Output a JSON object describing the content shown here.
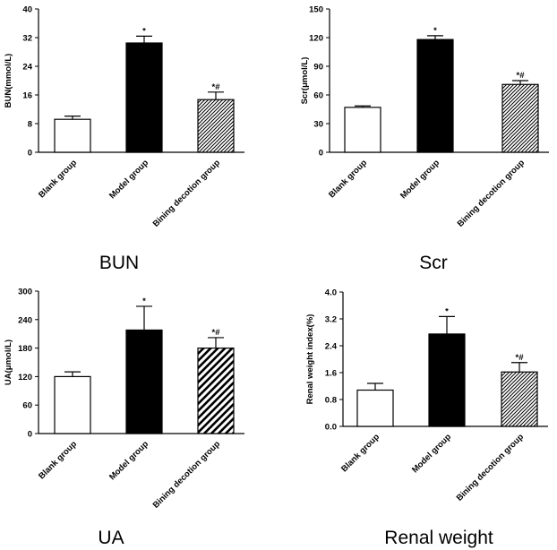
{
  "chart_data": [
    {
      "type": "bar",
      "caption": "BUN",
      "ylabel": "BUN(mmol/L)",
      "ylim": [
        0,
        40
      ],
      "yticks": [
        0,
        8,
        16,
        24,
        32,
        40
      ],
      "categories": [
        "Blank group",
        "Model group",
        "Bining decotion group"
      ],
      "values": [
        9.2,
        30.5,
        14.7
      ],
      "errors": [
        0.9,
        1.9,
        2.1
      ],
      "significance": [
        "",
        "*",
        "*#"
      ],
      "fills": [
        "white",
        "black",
        "hatch-fine"
      ]
    },
    {
      "type": "bar",
      "caption": "Scr",
      "ylabel": "Scr(μmol/L)",
      "ylim": [
        0,
        150
      ],
      "yticks": [
        0,
        30,
        60,
        90,
        120,
        150
      ],
      "categories": [
        "Blank group",
        "Model group",
        "Bining decotion group"
      ],
      "values": [
        47,
        118,
        71
      ],
      "errors": [
        1.5,
        4,
        4
      ],
      "significance": [
        "",
        "*",
        "*#"
      ],
      "fills": [
        "white",
        "black",
        "hatch-fine"
      ]
    },
    {
      "type": "bar",
      "caption": "UA",
      "ylabel": "UA(μmol/L)",
      "ylim": [
        0,
        300
      ],
      "yticks": [
        0,
        60,
        120,
        180,
        240,
        300
      ],
      "categories": [
        "Blank group",
        "Model group",
        "Bining decotion group"
      ],
      "values": [
        120,
        218,
        180
      ],
      "errors": [
        10,
        50,
        22
      ],
      "significance": [
        "",
        "*",
        "*#"
      ],
      "fills": [
        "white",
        "black",
        "hatch-bold"
      ]
    },
    {
      "type": "bar",
      "caption": "Renal weight",
      "ylabel": "Renal weight index(%)",
      "ylim": [
        0,
        4
      ],
      "yticks": [
        "0.0",
        "0.8",
        "1.6",
        "2.4",
        "3.2",
        "4.0"
      ],
      "categories": [
        "Blank group",
        "Model group",
        "Bining decotion group"
      ],
      "values": [
        1.08,
        2.75,
        1.62
      ],
      "errors": [
        0.2,
        0.52,
        0.28
      ],
      "significance": [
        "",
        "*",
        "*#"
      ],
      "fills": [
        "white",
        "black",
        "hatch-fine"
      ]
    }
  ]
}
